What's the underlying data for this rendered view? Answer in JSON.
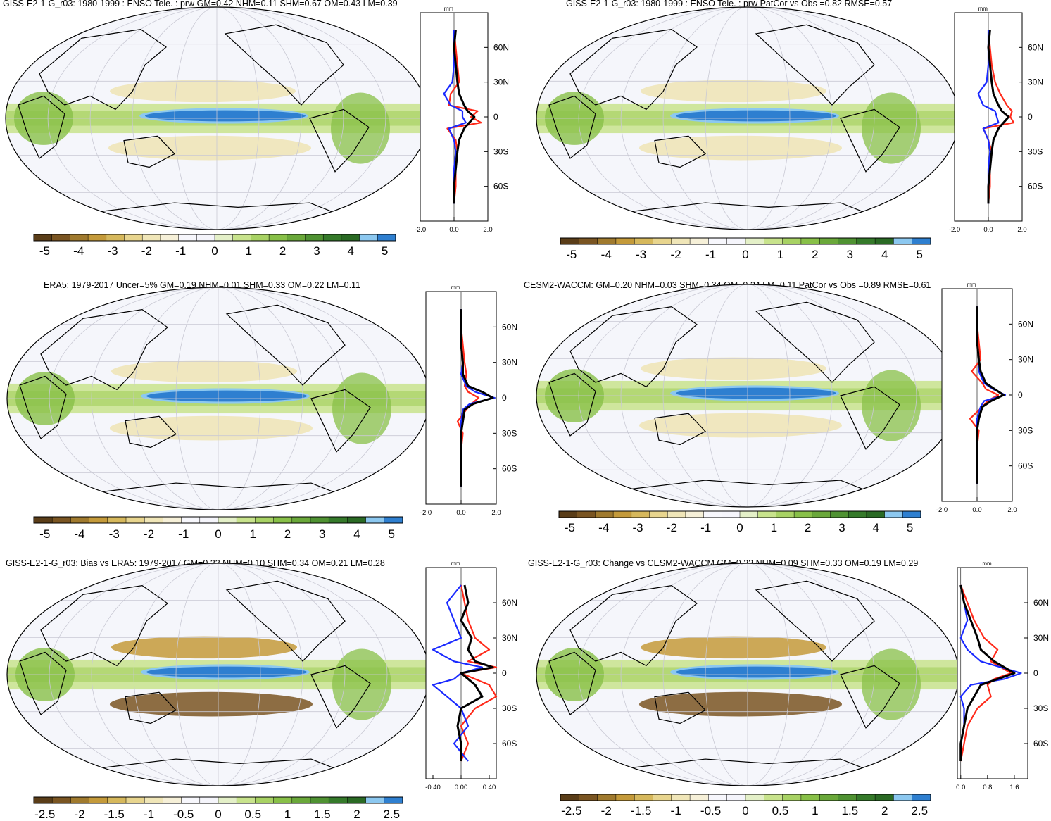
{
  "palette": {
    "colors": [
      "#5a3d18",
      "#7a5522",
      "#a07a2e",
      "#c49a3a",
      "#d6b85c",
      "#e8d58e",
      "#f0e6b8",
      "#f6f0d8",
      "#f7f7fc",
      "#f5f5fb",
      "#e4f0c8",
      "#c8e38c",
      "#a8d264",
      "#88c048",
      "#6aa83a",
      "#4f9232",
      "#357a2a",
      "#2a6a24",
      "#8cc8f0",
      "#2e7fd0"
    ],
    "blue_strong": "#2e7fd0",
    "blue_light": "#8cc8f0",
    "profile_colors": {
      "model": "#000000",
      "obs": "#ff2a1a",
      "ref": "#1a2aff"
    }
  },
  "profile_tick_labels": [
    "60N",
    "30N",
    "0",
    "30S",
    "60S"
  ],
  "profile_unit": "mm",
  "panels": [
    {
      "id": "p1",
      "title": "GISS-E2-1-G_r03: 1980-1999 : ENSO Tele. : prw GM=0.42 NHM=0.11 SHM=0.67 OM=0.43 LM=0.39",
      "xticks": [
        "-2.0",
        "0.0",
        "2.0"
      ],
      "xrange": [
        -2,
        2
      ],
      "cbar_labels": [
        "-5",
        "-4",
        "-3",
        "-2",
        "-1",
        "0",
        "1",
        "2",
        "3",
        "4",
        "5"
      ],
      "field": "model"
    },
    {
      "id": "p2",
      "title": "GISS-E2-1-G_r03: 1980-1999 : ENSO Tele. : prw PatCor vs Obs =0.82 RMSE=0.57",
      "xticks": [
        "-2.0",
        "0.0",
        "2.0"
      ],
      "xrange": [
        -2,
        2
      ],
      "cbar_labels": [
        "-5",
        "-4",
        "-3",
        "-2",
        "-1",
        "0",
        "1",
        "2",
        "3",
        "4",
        "5"
      ],
      "field": "model"
    },
    {
      "id": "p3",
      "title": "ERA5: 1979-2017 Uncer=5% GM=0.19 NHM=0.01 SHM=0.33 OM=0.22 LM=0.11",
      "xticks": [
        "-2.0",
        "0.0",
        "2.0"
      ],
      "xrange": [
        -2,
        2
      ],
      "cbar_labels": [
        "-5",
        "-4",
        "-3",
        "-2",
        "-1",
        "0",
        "1",
        "2",
        "3",
        "4",
        "5"
      ],
      "field": "obs"
    },
    {
      "id": "p4",
      "title": "CESM2-WACCM: GM=0.20 NHM=0.03 SHM=0.34 OM=0.24 LM=0.11 PatCor vs Obs =0.89 RMSE=0.61",
      "xticks": [
        "-2.0",
        "0.0",
        "2.0"
      ],
      "xrange": [
        -2,
        2
      ],
      "cbar_labels": [
        "-5",
        "-4",
        "-3",
        "-2",
        "-1",
        "0",
        "1",
        "2",
        "3",
        "4",
        "5"
      ],
      "field": "ref"
    },
    {
      "id": "p5",
      "title": "GISS-E2-1-G_r03: Bias vs ERA5: 1979-2017 GM=0.23 NHM=0.10 SHM=0.34 OM=0.21 LM=0.28",
      "xticks": [
        "-0.40",
        "0.00",
        "0.40"
      ],
      "xrange": [
        -0.5,
        0.5
      ],
      "cbar_labels": [
        "-2.5",
        "-2",
        "-1.5",
        "-1",
        "-0.5",
        "0",
        "0.5",
        "1",
        "1.5",
        "2",
        "2.5"
      ],
      "field": "bias"
    },
    {
      "id": "p6",
      "title": "GISS-E2-1-G_r03: Change vs CESM2-WACCM GM=0.22 NHM=0.09 SHM=0.33 OM=0.19 LM=0.29",
      "xticks": [
        "0.0",
        "0.8",
        "1.6"
      ],
      "xrange": [
        -0.1,
        2.0
      ],
      "cbar_labels": [
        "-2.5",
        "-2",
        "-1.5",
        "-1",
        "-0.5",
        "0",
        "0.5",
        "1",
        "1.5",
        "2",
        "2.5"
      ],
      "field": "change"
    }
  ],
  "chart_data": [
    {
      "type": "heatmap",
      "title": "GISS-E2-1-G_r03: 1980-1999 : ENSO Tele. : prw GM=0.42 NHM=0.11 SHM=0.67 OM=0.43 LM=0.39",
      "colorbar_range": [
        -5,
        5
      ],
      "profile": {
        "lat": [
          75,
          60,
          45,
          30,
          20,
          10,
          5,
          0,
          -5,
          -10,
          -20,
          -30,
          -45,
          -60,
          -75
        ],
        "series": [
          {
            "values": [
              0.1,
              0.0,
              0.1,
              0.2,
              0.3,
              0.6,
              0.8,
              1.2,
              0.9,
              0.6,
              0.3,
              0.2,
              0.1,
              0.0,
              0.0
            ]
          },
          {
            "values": [
              0.0,
              0.1,
              0.2,
              0.3,
              -0.2,
              -0.3,
              1.4,
              1.0,
              1.6,
              -0.4,
              0.1,
              0.2,
              0.1,
              0.1,
              0.0
            ]
          },
          {
            "values": [
              0.0,
              0.0,
              0.0,
              -0.1,
              -0.6,
              -0.2,
              0.5,
              0.5,
              0.7,
              -0.3,
              0.0,
              0.1,
              0.0,
              0.0,
              0.0
            ]
          }
        ]
      }
    },
    {
      "type": "heatmap",
      "title": "GISS-E2-1-G_r03: 1980-1999 : ENSO Tele. : prw PatCor vs Obs =0.82 RMSE=0.57",
      "colorbar_range": [
        -5,
        5
      ],
      "profile": {
        "lat": [
          75,
          60,
          45,
          30,
          20,
          10,
          5,
          0,
          -5,
          -10,
          -20,
          -30,
          -45,
          -60,
          -75
        ],
        "series": [
          {
            "values": [
              0.1,
              0.0,
              0.1,
              0.2,
              0.3,
              0.6,
              0.8,
              1.2,
              0.9,
              0.6,
              0.3,
              0.2,
              0.1,
              0.0,
              0.0
            ]
          },
          {
            "values": [
              0.0,
              0.1,
              0.2,
              0.4,
              0.7,
              1.1,
              1.4,
              1.3,
              1.5,
              -0.3,
              0.0,
              0.2,
              0.1,
              0.1,
              0.0
            ]
          },
          {
            "values": [
              0.0,
              0.0,
              0.0,
              -0.1,
              -0.6,
              -0.3,
              0.4,
              0.5,
              0.6,
              -0.3,
              0.0,
              0.1,
              0.0,
              0.0,
              0.0
            ]
          }
        ]
      }
    },
    {
      "type": "heatmap",
      "title": "ERA5: 1979-2017 Uncer=5% GM=0.19 NHM=0.01 SHM=0.33 OM=0.22 LM=0.11",
      "colorbar_range": [
        -5,
        5
      ],
      "profile": {
        "lat": [
          75,
          60,
          45,
          30,
          20,
          10,
          5,
          0,
          -5,
          -10,
          -20,
          -30,
          -45,
          -60,
          -75
        ],
        "series": [
          {
            "values": [
              0.0,
              0.0,
              0.0,
              0.1,
              0.1,
              0.4,
              1.2,
              1.8,
              0.7,
              0.2,
              0.1,
              0.0,
              0.0,
              0.0,
              0.0
            ]
          },
          {
            "values": [
              0.0,
              0.0,
              0.1,
              0.2,
              0.3,
              0.2,
              0.4,
              1.0,
              0.6,
              0.3,
              -0.2,
              0.1,
              0.0,
              0.0,
              0.0
            ]
          },
          {
            "values": [
              0.0,
              0.0,
              0.0,
              0.1,
              0.0,
              0.3,
              0.8,
              1.9,
              0.5,
              0.1,
              0.0,
              0.0,
              0.0,
              0.0,
              0.0
            ]
          }
        ]
      }
    },
    {
      "type": "heatmap",
      "title": "CESM2-WACCM: GM=0.20 NHM=0.03 SHM=0.34 OM=0.24 LM=0.11 PatCor vs Obs =0.89 RMSE=0.61",
      "colorbar_range": [
        -5,
        5
      ],
      "profile": {
        "lat": [
          75,
          60,
          45,
          30,
          20,
          10,
          5,
          0,
          -5,
          -10,
          -20,
          -30,
          -45,
          -60,
          -75
        ],
        "series": [
          {
            "values": [
              0.0,
              0.0,
              0.0,
              0.1,
              0.2,
              0.5,
              1.0,
              1.5,
              0.8,
              0.3,
              0.1,
              0.0,
              0.0,
              0.0,
              0.0
            ]
          },
          {
            "values": [
              0.0,
              0.0,
              0.1,
              0.2,
              -0.3,
              0.3,
              0.5,
              1.2,
              0.6,
              0.3,
              -0.4,
              0.1,
              0.0,
              0.0,
              0.0
            ]
          },
          {
            "values": [
              0.0,
              0.0,
              0.0,
              0.1,
              0.1,
              0.4,
              0.9,
              1.6,
              0.4,
              0.2,
              0.0,
              0.0,
              0.0,
              0.0,
              0.0
            ]
          }
        ]
      }
    },
    {
      "type": "heatmap",
      "title": "GISS-E2-1-G_r03: Bias vs ERA5: 1979-2017 GM=0.23 NHM=0.10 SHM=0.34 OM=0.21 LM=0.28",
      "colorbar_range": [
        -2.5,
        2.5
      ],
      "profile": {
        "lat": [
          75,
          60,
          45,
          30,
          20,
          10,
          5,
          0,
          -5,
          -10,
          -20,
          -30,
          -45,
          -60,
          -75
        ],
        "series": [
          {
            "values": [
              0.05,
              0.1,
              0.0,
              0.15,
              0.1,
              0.2,
              0.45,
              0.0,
              0.1,
              0.2,
              0.3,
              0.0,
              -0.05,
              0.0,
              0.0
            ]
          },
          {
            "values": [
              0.0,
              0.05,
              0.1,
              0.2,
              0.4,
              0.1,
              0.5,
              0.0,
              0.2,
              0.4,
              0.5,
              0.2,
              0.0,
              0.1,
              0.0
            ]
          },
          {
            "values": [
              0.0,
              -0.2,
              -0.1,
              0.0,
              -0.4,
              -0.1,
              0.3,
              0.0,
              -0.1,
              -0.4,
              -0.2,
              0.0,
              0.1,
              -0.1,
              0.1
            ]
          }
        ]
      }
    },
    {
      "type": "heatmap",
      "title": "GISS-E2-1-G_r03: Change vs CESM2-WACCM GM=0.22 NHM=0.09 SHM=0.33 OM=0.19 LM=0.29",
      "colorbar_range": [
        -2.5,
        2.5
      ],
      "profile": {
        "lat": [
          75,
          60,
          45,
          30,
          20,
          10,
          5,
          0,
          -5,
          -10,
          -20,
          -30,
          -45,
          -60,
          -75
        ],
        "series": [
          {
            "values": [
              0.0,
              0.1,
              0.3,
              0.5,
              0.6,
              1.0,
              1.3,
              1.6,
              1.1,
              0.6,
              0.4,
              0.2,
              0.1,
              0.0,
              0.0
            ]
          },
          {
            "values": [
              0.0,
              0.2,
              0.4,
              0.7,
              1.1,
              0.9,
              1.2,
              1.5,
              1.0,
              0.8,
              0.9,
              0.5,
              0.2,
              0.1,
              0.0
            ]
          },
          {
            "values": [
              0.0,
              0.1,
              0.2,
              0.0,
              0.2,
              0.6,
              1.2,
              1.8,
              1.3,
              0.3,
              0.0,
              0.1,
              0.1,
              0.0,
              0.0
            ]
          }
        ]
      }
    }
  ]
}
